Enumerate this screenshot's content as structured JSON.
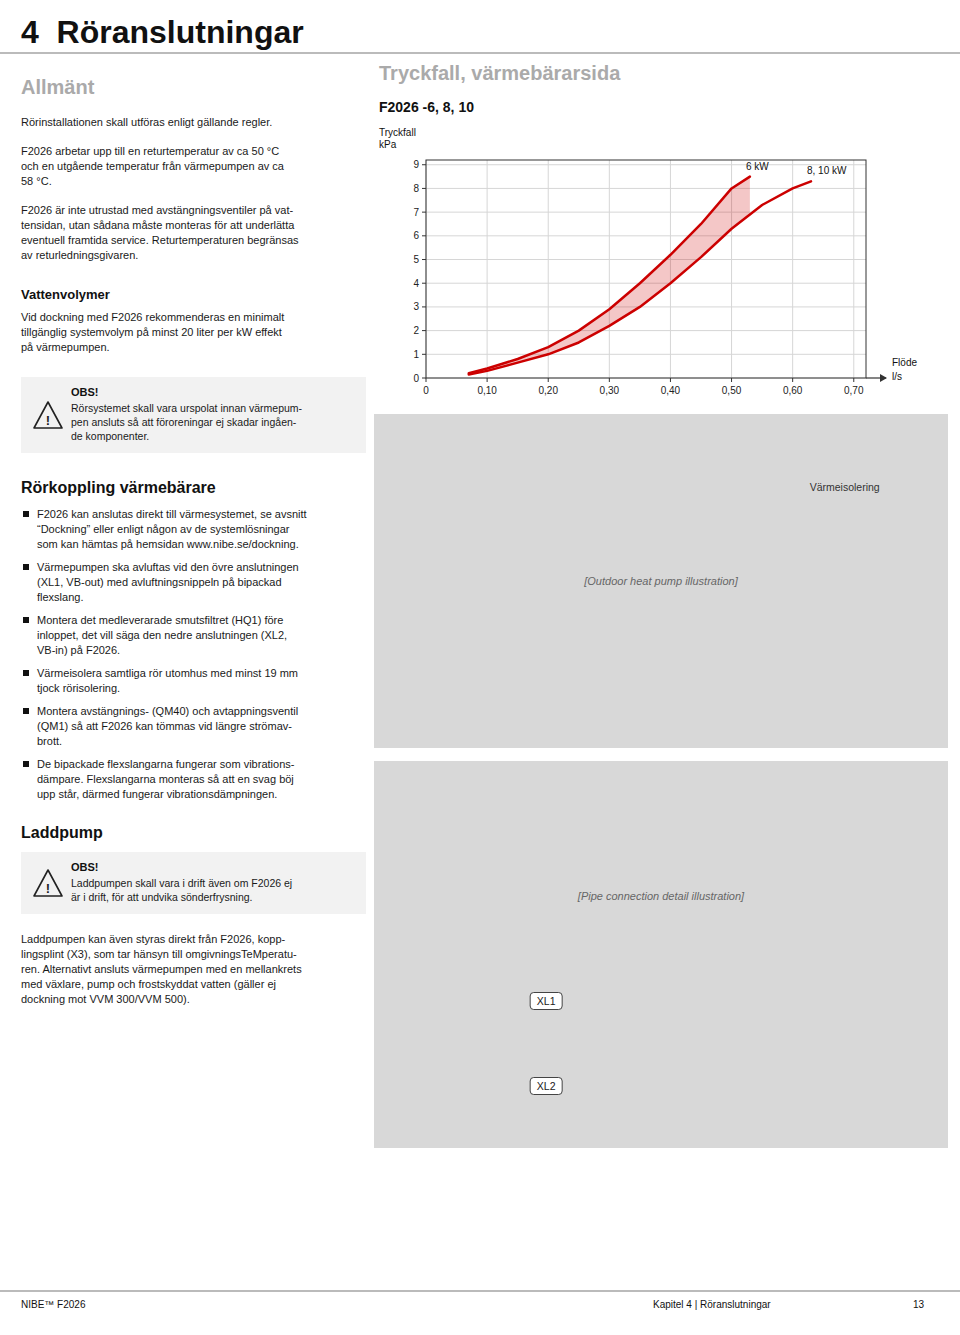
{
  "page": {
    "page_title": "4  Röranslutningar",
    "page_bg": "#ffffff",
    "text_color": "#1a1a1a",
    "section1_heading": "Allmänt",
    "section1_text1": "Rörinstallationen skall utföras enligt gällande regler.",
    "section1_text2": "F2026 arbetar upp till en returtemperatur av ca 50 °C\noch en utgående temperatur från värmepumpen av ca\n58 °C.",
    "section1_text3": "F2026 är inte utrustad med avstängningsventiler på vat-\ntensidan, utan sådana måste monteras för att underlätta\neventuell framtida service. Returtemperaturen begränsas\nav returledningsgivaren.",
    "subsection1_heading": "Vattenvolymer",
    "subsection1_text": "Vid dockning med F2026 rekommenderas en minimalt\ntillgänglig systemvolym på minst 20 liter per kW effekt\npå värmepumpen.",
    "obs_label": "OBS!",
    "warning_symbol": "!",
    "obs_box1_text": "Rörsystemet skall vara urspolat innan värmepum-\npen ansluts så att föroreningar ej skadar ingåen-\nde komponenter.",
    "section2_heading": "Rörkoppling värmebärare",
    "section2_bullets": [
      "F2026 kan anslutas direkt till värmesystemet, se avsnitt\n“Dockning” eller enligt någon av de systemlösningar\nsom kan hämtas på hemsidan www.nibe.se/dockning.",
      "Värmepumpen ska avluftas vid den övre anslutningen\n(XL1, VB-out) med avluftningsnippeln på bipackad\nflexslang.",
      "Montera det medleverarade smutsfiltret (HQ1) före\ninloppet, det vill säga den nedre anslutningen (XL2,\nVB-in) på F2026.",
      "Värmeisolera samtliga rör utomhus med minst 19 mm\ntjock rörisolering.",
      "Montera avstängnings- (QM40) och avtappningsventil\n(QM1) så att F2026 kan tömmas vid längre strömav-\nbrott.",
      "De bipackade flexslangarna fungerar som vibrations-\ndämpare. Flexslangarna monteras så att en svag böj\nupp står, därmed fungerar vibrationsdämpningen."
    ],
    "section3_heading": "Laddpump",
    "obs_box2_text": "Laddpumpen skall vara i drift även om F2026 ej\när i drift, för att undvika sönderfrysning.",
    "section3_text": "Laddpumpen kan även styras direkt från F2026, kopp-\nlingsplint (X3), som tar hänsyn till omgivningsTeMperatu-\nren. Alternativt ansluts värmepumpen med en mellankrets\nmed växlare, pump och frostskyddat vatten (gäller ej\ndockning mot VVM 300/VVM 500).",
    "images": [
      {
        "caption": "[Outdoor heat pump illustration]",
        "labels": [
          "Värmeisolering"
        ]
      },
      {
        "caption": "[Pipe connection detail illustration]",
        "labels": [
          "XL1",
          "XL2"
        ]
      }
    ],
    "footer_left": "NIBE™ F2026",
    "footer_right": "Kapitel 4 | Röranslutningar",
    "footer_page": "13"
  },
  "chart_data": {
    "type": "line",
    "title": "Tryckfall, värmebärarsida",
    "subtitle": "F2026 -6, 8, 10",
    "y_label": "Tryckfall",
    "y_unit": "kPa",
    "x_label": "Flöde",
    "x_unit": "l/s",
    "xlim": [
      0,
      0.72
    ],
    "ylim": [
      0,
      9.2
    ],
    "xticks": [
      0,
      {
        "value": 0.1,
        "label": "0,10"
      },
      {
        "value": 0.2,
        "label": "0,20"
      },
      {
        "value": 0.3,
        "label": "0,30"
      },
      {
        "value": 0.4,
        "label": "0,40"
      },
      {
        "value": 0.5,
        "label": "0,50"
      },
      {
        "value": 0.6,
        "label": "0,60"
      },
      {
        "value": 0.7,
        "label": "0,70"
      }
    ],
    "yticks": [
      0,
      1,
      2,
      3,
      4,
      5,
      6,
      7,
      8,
      9
    ],
    "grid": true,
    "series": [
      {
        "name": "6 kW",
        "color": "#cc0000",
        "x": [
          0.07,
          0.1,
          0.15,
          0.2,
          0.25,
          0.3,
          0.35,
          0.4,
          0.45,
          0.5,
          0.53
        ],
        "values": [
          0.2,
          0.4,
          0.8,
          1.3,
          2.0,
          2.9,
          4.0,
          5.2,
          6.5,
          8.0,
          8.5
        ]
      },
      {
        "name": "8, 10 kW",
        "color": "#cc0000",
        "x": [
          0.07,
          0.1,
          0.15,
          0.2,
          0.25,
          0.3,
          0.35,
          0.4,
          0.45,
          0.5,
          0.55,
          0.6,
          0.63
        ],
        "values": [
          0.15,
          0.3,
          0.65,
          1.0,
          1.5,
          2.2,
          3.0,
          4.0,
          5.1,
          6.3,
          7.3,
          8.0,
          8.3
        ]
      }
    ]
  }
}
